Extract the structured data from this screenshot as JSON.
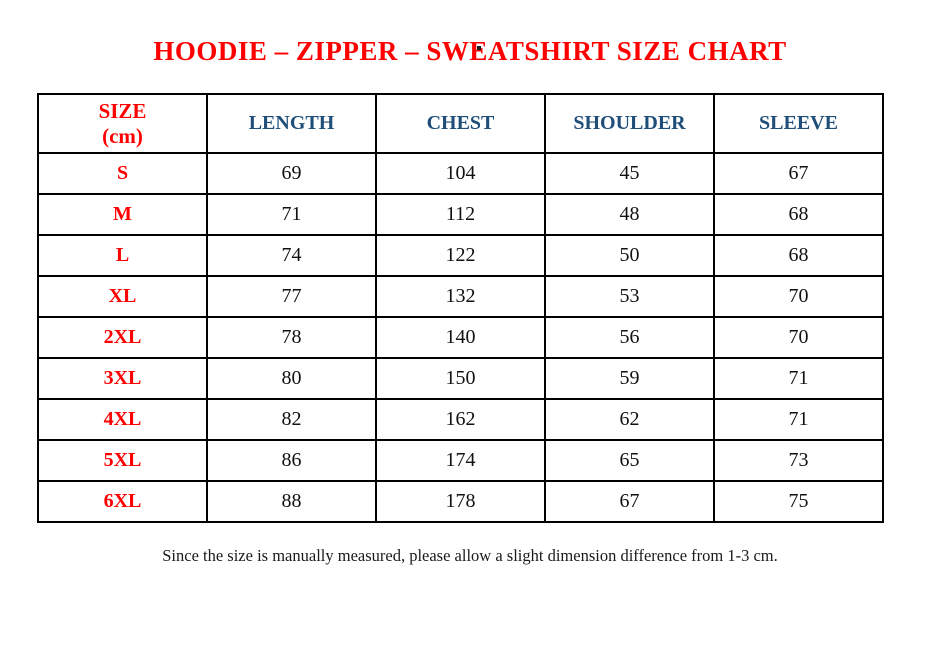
{
  "page": {
    "title": "HOODIE – ZIPPER – SWEATSHIRT SIZE CHART",
    "footnote": "Since the size is manually measured, please allow a slight dimension difference from 1-3 cm."
  },
  "colors": {
    "title_red": "#ff0000",
    "size_label_red": "#ff0000",
    "header_blue": "#1f4e79",
    "body_text": "#111111",
    "border": "#000000",
    "background": "#ffffff"
  },
  "table": {
    "header": {
      "size_line1": "SIZE",
      "size_line2": "(cm)",
      "columns": [
        "LENGTH",
        "CHEST",
        "SHOULDER",
        "SLEEVE"
      ]
    },
    "rows": [
      {
        "size": "S",
        "length": "69",
        "chest": "104",
        "shoulder": "45",
        "sleeve": "67"
      },
      {
        "size": "M",
        "length": "71",
        "chest": "112",
        "shoulder": "48",
        "sleeve": "68"
      },
      {
        "size": "L",
        "length": "74",
        "chest": "122",
        "shoulder": "50",
        "sleeve": "68"
      },
      {
        "size": "XL",
        "length": "77",
        "chest": "132",
        "shoulder": "53",
        "sleeve": "70"
      },
      {
        "size": "2XL",
        "length": "78",
        "chest": "140",
        "shoulder": "56",
        "sleeve": "70"
      },
      {
        "size": "3XL",
        "length": "80",
        "chest": "150",
        "shoulder": "59",
        "sleeve": "71"
      },
      {
        "size": "4XL",
        "length": "82",
        "chest": "162",
        "shoulder": "62",
        "sleeve": "71"
      },
      {
        "size": "5XL",
        "length": "86",
        "chest": "174",
        "shoulder": "65",
        "sleeve": "73"
      },
      {
        "size": "6XL",
        "length": "88",
        "chest": "178",
        "shoulder": "67",
        "sleeve": "75"
      }
    ]
  }
}
